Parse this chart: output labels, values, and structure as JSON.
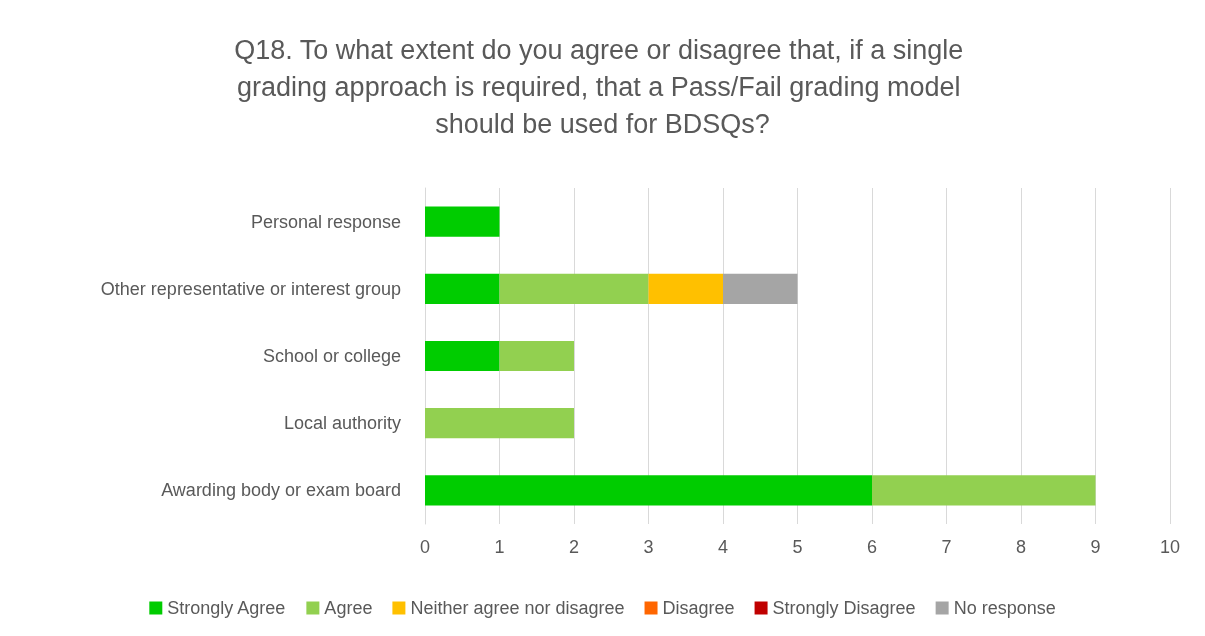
{
  "chart_data": {
    "type": "bar",
    "orientation": "horizontal",
    "stacked": true,
    "title": "Q18. To what extent do you agree or disagree that, if a single grading approach is required, that a Pass/Fail grading model should be used for BDSQs?",
    "categories": [
      "Personal response",
      "Other representative or interest group",
      "School or college",
      "Local authority",
      "Awarding body or exam board"
    ],
    "series": [
      {
        "name": "Strongly Agree",
        "color": "#00cc00",
        "values": [
          1,
          1,
          1,
          0,
          6
        ]
      },
      {
        "name": "Agree",
        "color": "#92d050",
        "values": [
          0,
          2,
          1,
          2,
          3
        ]
      },
      {
        "name": "Neither agree nor disagree",
        "color": "#ffc000",
        "values": [
          0,
          1,
          0,
          0,
          0
        ]
      },
      {
        "name": "Disagree",
        "color": "#ff6600",
        "values": [
          0,
          0,
          0,
          0,
          0
        ]
      },
      {
        "name": "Strongly Disagree",
        "color": "#c00000",
        "values": [
          0,
          0,
          0,
          0,
          0
        ]
      },
      {
        "name": "No response",
        "color": "#a5a5a5",
        "values": [
          0,
          1,
          0,
          0,
          0
        ]
      }
    ],
    "xlim": [
      0,
      10
    ],
    "xticks": [
      0,
      1,
      2,
      3,
      4,
      5,
      6,
      7,
      8,
      9,
      10
    ],
    "grid": "x",
    "legend": "bottom"
  }
}
